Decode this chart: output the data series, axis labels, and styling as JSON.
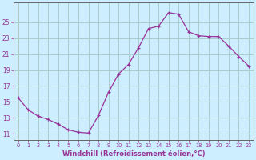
{
  "x": [
    0,
    1,
    2,
    3,
    4,
    5,
    6,
    7,
    8,
    9,
    10,
    11,
    12,
    13,
    14,
    15,
    16,
    17,
    18,
    19,
    20,
    21,
    22,
    23
  ],
  "y": [
    15.5,
    14.0,
    13.2,
    12.8,
    12.2,
    11.5,
    11.2,
    11.1,
    13.3,
    16.2,
    18.5,
    19.7,
    21.8,
    24.2,
    24.5,
    26.2,
    26.0,
    23.8,
    23.3,
    23.2,
    23.2,
    22.0,
    20.7,
    19.5
  ],
  "line_color": "#993399",
  "marker": "+",
  "bg_color": "#cceeff",
  "grid_color": "#aacccc",
  "ylabel_ticks": [
    11,
    13,
    15,
    17,
    19,
    21,
    23,
    25
  ],
  "xlim": [
    -0.5,
    23.5
  ],
  "ylim": [
    10.2,
    27.5
  ],
  "xlabel_color": "#993399",
  "tick_color": "#993399",
  "spine_color": "#666666",
  "xlabel": "Windchill (Refroidissement éolien,°C)"
}
